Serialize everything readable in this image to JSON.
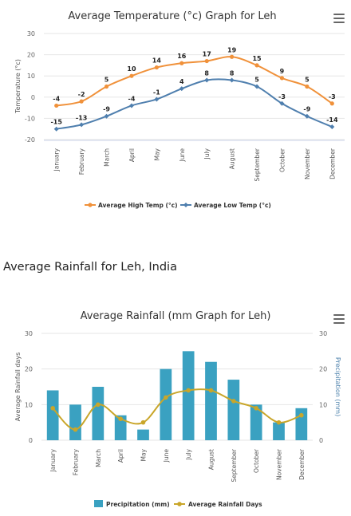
{
  "temperature": {
    "chart_data": {
      "type": "line",
      "title": "Average Temperature (°c) Graph for Leh",
      "ylabel": "Temperature (°c)",
      "categories": [
        "January",
        "February",
        "March",
        "April",
        "May",
        "June",
        "July",
        "August",
        "September",
        "October",
        "November",
        "December"
      ],
      "ylim": [
        -20,
        30
      ],
      "yticks": [
        -20,
        -10,
        0,
        10,
        20,
        30
      ],
      "grid": true,
      "legend_position": "bottom",
      "series": [
        {
          "name": "Average High Temp (°c)",
          "color": "#f0913a",
          "values": [
            -4,
            -2,
            5,
            10,
            14,
            16,
            17,
            19,
            15,
            9,
            5,
            -3
          ]
        },
        {
          "name": "Average Low Temp (°c)",
          "color": "#4f7fae",
          "values": [
            -15,
            -13,
            -9,
            -4,
            -1,
            4,
            8,
            8,
            5,
            -3,
            -9,
            -14
          ]
        }
      ]
    }
  },
  "section_heading": "Average Rainfall for Leh, India",
  "rainfall": {
    "chart_data": {
      "type": "bar",
      "title": "Average Rainfall (mm Graph for Leh)",
      "ylabel_left": "Average Rainfall days",
      "ylabel_right": "Precipitation (mm)",
      "categories": [
        "January",
        "February",
        "March",
        "April",
        "May",
        "June",
        "July",
        "August",
        "September",
        "October",
        "November",
        "December"
      ],
      "ylim": [
        0,
        30
      ],
      "yticks": [
        0,
        10,
        20,
        30
      ],
      "grid": true,
      "legend_position": "bottom",
      "series": [
        {
          "name": "Precipitation (mm)",
          "type": "bar",
          "color": "#3aa1c1",
          "values": [
            14,
            10,
            15,
            7,
            3,
            20,
            25,
            22,
            17,
            10,
            5,
            9
          ]
        },
        {
          "name": "Average Rainfall Days",
          "type": "line",
          "color": "#c9a62a",
          "values": [
            9,
            3,
            10,
            6,
            5,
            12,
            14,
            14,
            11,
            9,
            5,
            7
          ]
        }
      ]
    }
  }
}
